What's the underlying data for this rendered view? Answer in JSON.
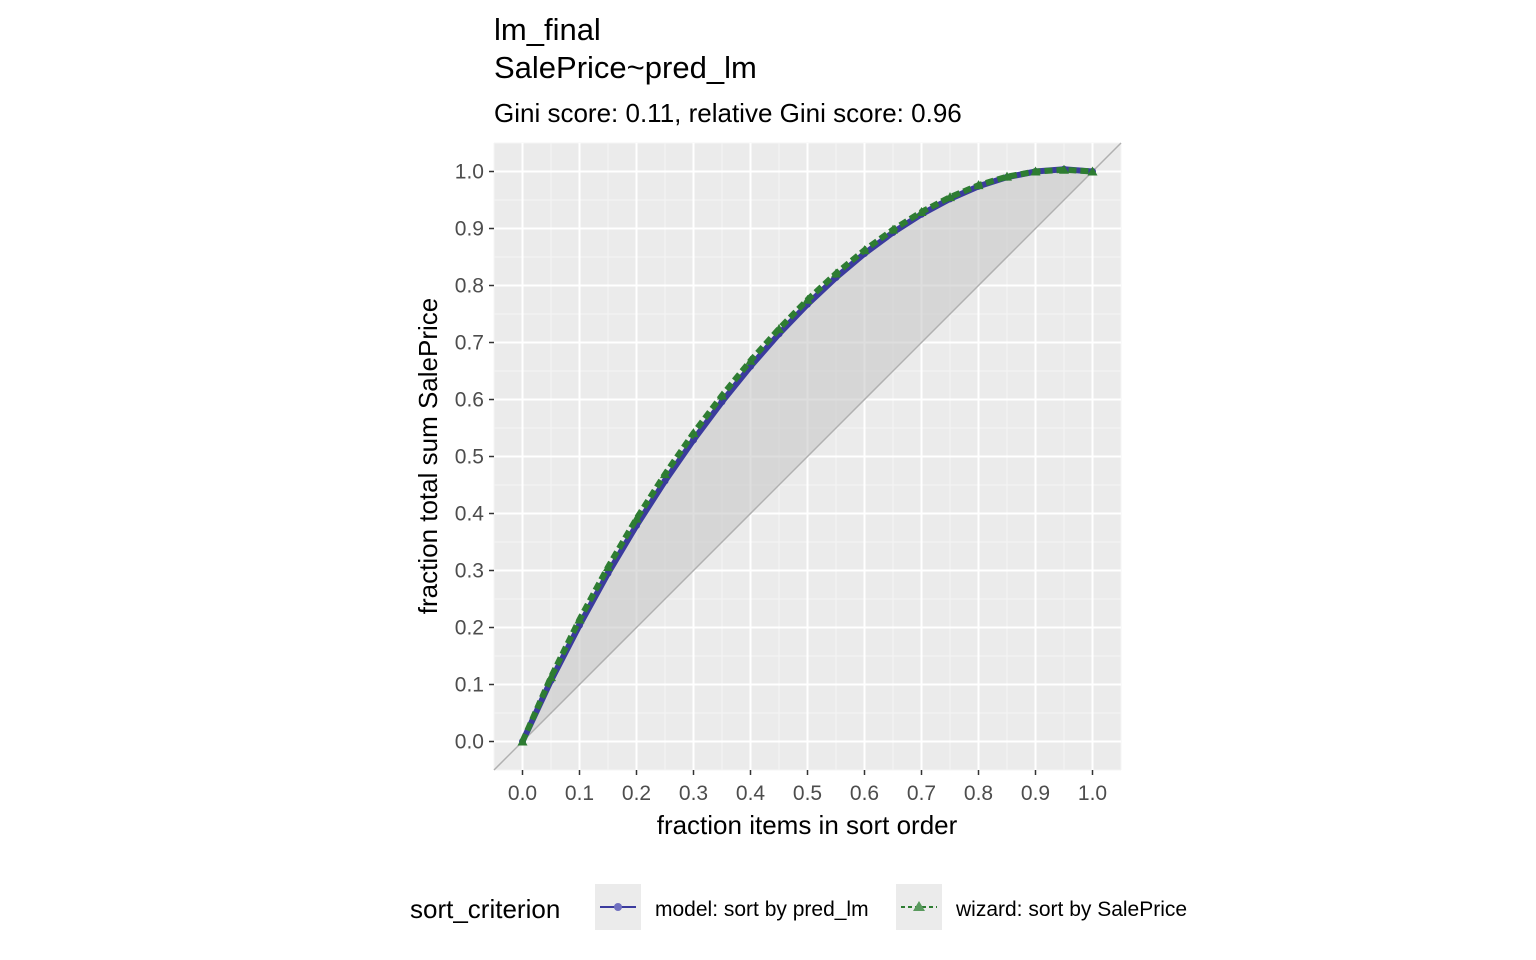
{
  "chart_data": {
    "type": "line",
    "title": "lm_final",
    "title2": "SalePrice~pred_lm",
    "subtitle": "Gini score: 0.11, relative Gini score: 0.96",
    "xlabel": "fraction items in sort order",
    "ylabel": "fraction total sum SalePrice",
    "xlim": [
      -0.05,
      1.05
    ],
    "ylim": [
      -0.05,
      1.05
    ],
    "x_ticks": [
      "0.0",
      "0.1",
      "0.2",
      "0.3",
      "0.4",
      "0.5",
      "0.6",
      "0.7",
      "0.8",
      "0.9",
      "1.0"
    ],
    "y_ticks": [
      "0.0",
      "0.1",
      "0.2",
      "0.3",
      "0.4",
      "0.5",
      "0.6",
      "0.7",
      "0.8",
      "0.9",
      "1.0"
    ],
    "grid": true,
    "legend_position": "bottom",
    "legend_title": "sort_criterion",
    "diagonal_reference": true,
    "x": [
      0.0,
      0.05,
      0.1,
      0.15,
      0.2,
      0.25,
      0.3,
      0.35,
      0.4,
      0.45,
      0.5,
      0.55,
      0.6,
      0.65,
      0.7,
      0.75,
      0.8,
      0.85,
      0.9,
      0.95,
      1.0
    ],
    "series": [
      {
        "name": "model: sort by pred_lm",
        "color": "#3b3b9e",
        "marker": "circle",
        "linestyle": "solid",
        "values": [
          0.0,
          0.107,
          0.204,
          0.295,
          0.379,
          0.457,
          0.529,
          0.596,
          0.658,
          0.715,
          0.767,
          0.814,
          0.856,
          0.893,
          0.925,
          0.952,
          0.974,
          0.99,
          1.0,
          1.004,
          1.0
        ]
      },
      {
        "name": "wizard: sort by SalePrice",
        "color": "#2e7d32",
        "marker": "triangle",
        "linestyle": "dashed",
        "values": [
          0.0,
          0.113,
          0.214,
          0.306,
          0.391,
          0.469,
          0.541,
          0.607,
          0.668,
          0.724,
          0.775,
          0.821,
          0.862,
          0.898,
          0.929,
          0.955,
          0.976,
          0.991,
          1.0,
          1.003,
          1.0
        ]
      }
    ]
  }
}
